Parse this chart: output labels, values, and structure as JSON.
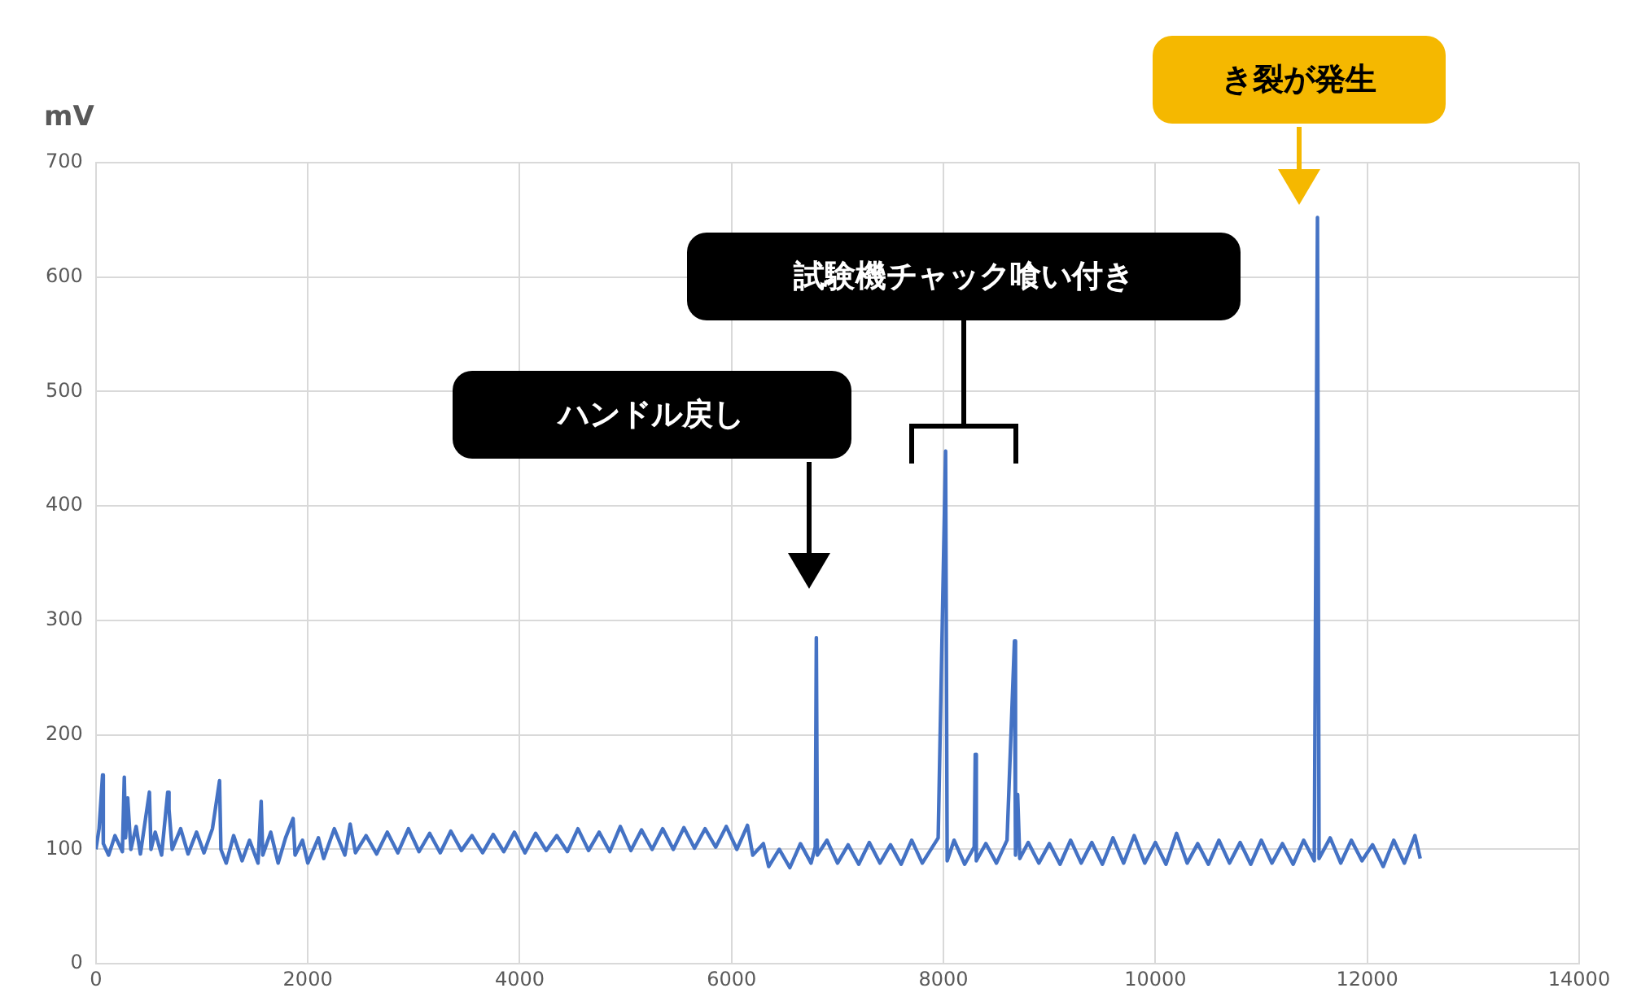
{
  "chart_data": {
    "type": "line",
    "ylabel": "mV",
    "x": [
      0,
      30,
      63,
      70,
      120,
      180,
      250,
      268,
      280,
      300,
      330,
      380,
      420,
      505,
      520,
      560,
      620,
      678,
      690,
      720,
      800,
      870,
      950,
      1020,
      1100,
      1167,
      1180,
      1230,
      1300,
      1380,
      1450,
      1530,
      1560,
      1575,
      1650,
      1720,
      1790,
      1861,
      1880,
      1950,
      2000,
      2100,
      2150,
      2250,
      2350,
      2400,
      2450,
      2550,
      2650,
      2750,
      2850,
      2950,
      3050,
      3150,
      3250,
      3350,
      3450,
      3550,
      3650,
      3750,
      3850,
      3950,
      4050,
      4150,
      4250,
      4350,
      4450,
      4550,
      4650,
      4750,
      4850,
      4950,
      5050,
      5150,
      5250,
      5350,
      5450,
      5550,
      5650,
      5750,
      5850,
      5950,
      6050,
      6150,
      6200,
      6300,
      6350,
      6450,
      6550,
      6650,
      6750,
      6790,
      6800,
      6810,
      6900,
      7000,
      7100,
      7200,
      7300,
      7400,
      7500,
      7600,
      7700,
      7800,
      7950,
      8020,
      8035,
      8100,
      8200,
      8290,
      8300,
      8310,
      8400,
      8500,
      8600,
      8670,
      8680,
      8700,
      8720,
      8800,
      8900,
      9000,
      9100,
      9200,
      9300,
      9400,
      9500,
      9600,
      9700,
      9800,
      9900,
      10000,
      10100,
      10200,
      10300,
      10400,
      10500,
      10600,
      10700,
      10800,
      10900,
      11000,
      11100,
      11200,
      11300,
      11400,
      11500,
      11530,
      11545,
      11650,
      11750,
      11850,
      11950,
      12050,
      12150,
      12250,
      12350,
      12450,
      12500
    ],
    "series": [
      {
        "color": "#4472c4",
        "values": [
          100,
          118,
          165,
          105,
          95,
          112,
          98,
          163,
          110,
          145,
          100,
          120,
          96,
          150,
          100,
          115,
          95,
          150,
          135,
          100,
          118,
          96,
          115,
          97,
          118,
          160,
          100,
          88,
          112,
          90,
          108,
          88,
          142,
          95,
          115,
          88,
          110,
          127,
          95,
          108,
          88,
          110,
          92,
          118,
          95,
          122,
          97,
          112,
          96,
          115,
          97,
          118,
          98,
          114,
          97,
          116,
          99,
          112,
          97,
          113,
          98,
          115,
          97,
          114,
          99,
          112,
          98,
          118,
          99,
          115,
          98,
          120,
          99,
          117,
          100,
          118,
          100,
          119,
          101,
          118,
          102,
          120,
          100,
          121,
          95,
          105,
          85,
          100,
          84,
          105,
          88,
          102,
          285,
          95,
          108,
          88,
          104,
          87,
          106,
          88,
          104,
          87,
          108,
          88,
          110,
          448,
          90,
          108,
          87,
          102,
          183,
          90,
          105,
          88,
          108,
          282,
          95,
          148,
          92,
          106,
          88,
          105,
          87,
          108,
          88,
          106,
          87,
          110,
          88,
          112,
          88,
          106,
          87,
          114,
          88,
          105,
          87,
          108,
          88,
          106,
          87,
          108,
          88,
          105,
          87,
          108,
          90,
          652,
          92,
          110,
          88,
          108,
          90,
          104,
          85,
          108,
          88,
          112,
          92
        ]
      }
    ],
    "xlim": [
      0,
      14000
    ],
    "xticks": [
      0,
      2000,
      4000,
      6000,
      8000,
      10000,
      12000,
      14000
    ],
    "ylim": [
      0,
      700
    ],
    "yticks": [
      0,
      100,
      200,
      300,
      400,
      500,
      600,
      700
    ],
    "grid": true,
    "legend": false,
    "marker": "none",
    "line_style": "solid",
    "annotations": [
      "ハンドル戻し",
      "試験機チャック喰い付き",
      "き裂が発生"
    ]
  }
}
